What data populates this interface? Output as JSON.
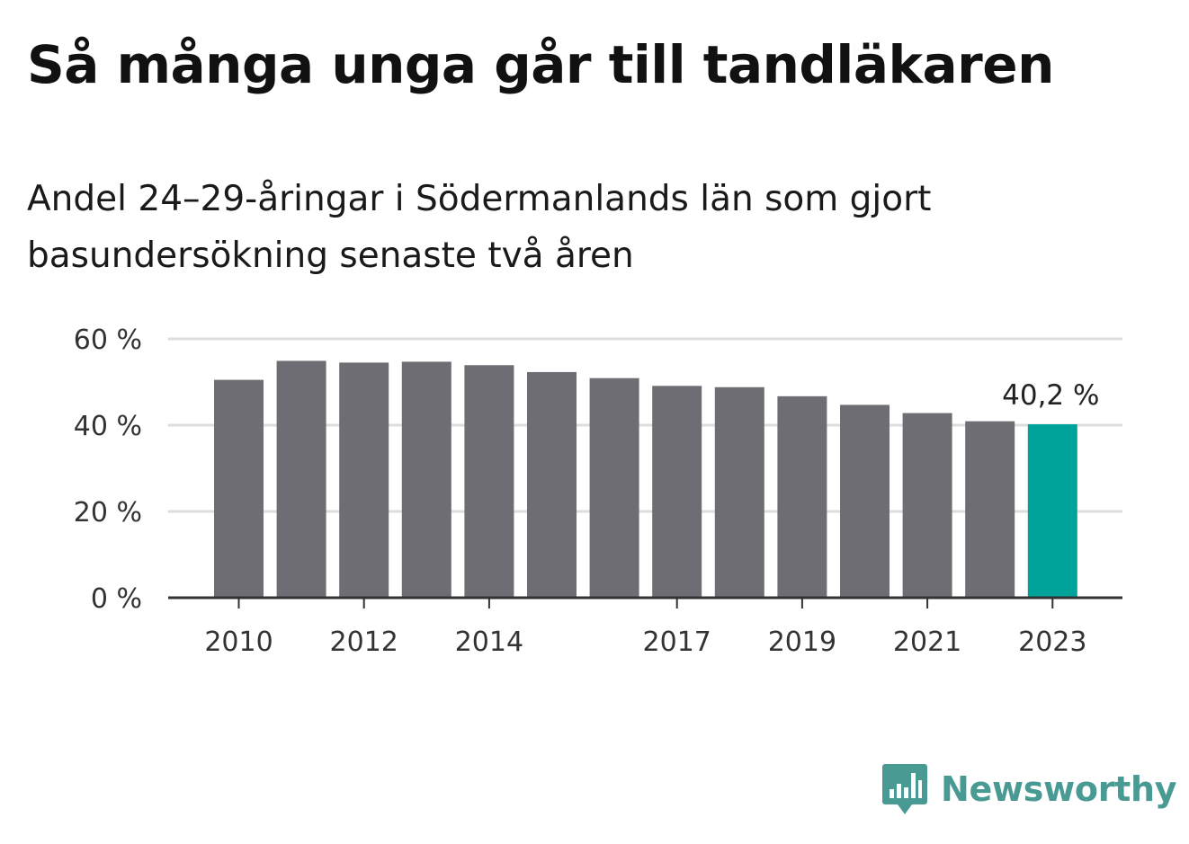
{
  "chart_data": {
    "type": "bar",
    "title": "Så många unga går till tandläkaren",
    "subtitle": "Andel 24–29-åringar i Södermanlands län som gjort basundersökning senaste två åren",
    "categories": [
      "2010",
      "2011",
      "2012",
      "2013",
      "2014",
      "2015",
      "2016",
      "2017",
      "2018",
      "2019",
      "2020",
      "2021",
      "2022",
      "2023"
    ],
    "values": [
      50.5,
      54.9,
      54.5,
      54.7,
      53.9,
      52.3,
      50.9,
      49.1,
      48.8,
      46.7,
      44.7,
      42.8,
      40.9,
      40.2
    ],
    "x_tick_labels": [
      "2010",
      "2012",
      "2014",
      "2017",
      "2019",
      "2021",
      "2023"
    ],
    "y_ticks": [
      0,
      20,
      40,
      60
    ],
    "y_tick_labels": [
      "0 %",
      "20 %",
      "40 %",
      "60 %"
    ],
    "ylim": [
      0,
      60
    ],
    "grid": true,
    "highlight_index": 13,
    "data_label": "40,2 %",
    "colors": {
      "bar": "#6e6d73",
      "highlight": "#00a39a",
      "grid": "#dddddd",
      "axis": "#333333"
    }
  },
  "brand": {
    "name": "Newsworthy",
    "icon": "newsworthy-logo-icon",
    "color": "#4a9a94"
  }
}
